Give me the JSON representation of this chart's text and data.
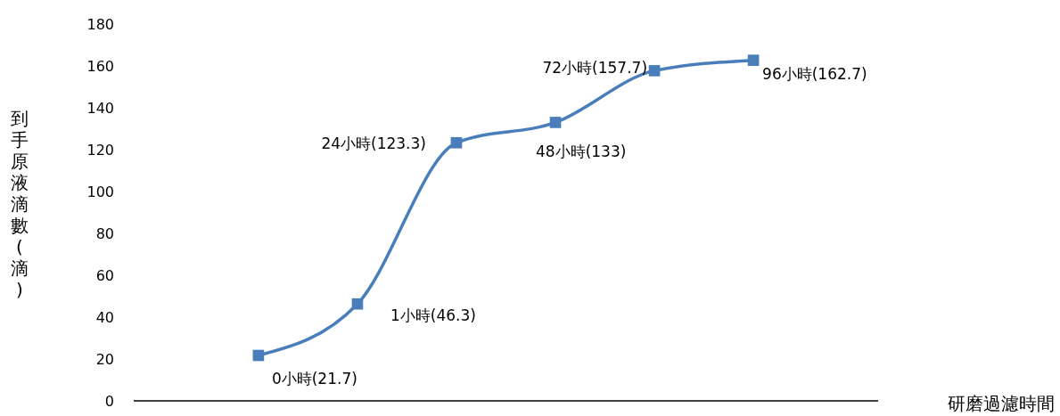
{
  "chart_data": {
    "type": "line",
    "xlabel": "研磨過濾時間",
    "ylabel": "到手原液滴數(滴)",
    "categories": [
      null,
      null,
      null,
      null,
      null,
      null
    ],
    "values": [
      21.7,
      46.3,
      123.3,
      133,
      157.7,
      162.7
    ],
    "value_labels": [
      "0小時(21.7)",
      "1小時(46.3)",
      "24小時(123.3)",
      "48小時(133)",
      "72小時(157.7)",
      "96小時(162.7)"
    ],
    "color": "#4a7ebb",
    "marker": "square",
    "tick_labels": "y",
    "ylim": [
      0,
      180
    ],
    "yticks": [
      0,
      20,
      40,
      60,
      80,
      100,
      120,
      140,
      160,
      180
    ]
  }
}
